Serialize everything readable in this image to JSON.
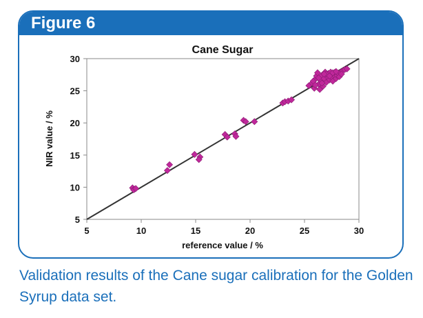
{
  "figure": {
    "label": "Figure 6",
    "caption": "Validation results of the Cane sugar calibration for the Golden Syrup data set."
  },
  "colors": {
    "accent": "#1a6fba",
    "marker": "#c0289b",
    "line": "#333333"
  },
  "chart_data": {
    "type": "scatter",
    "title": "Cane Sugar",
    "xlabel": "reference value / %",
    "ylabel": "NIR value / %",
    "xlim": [
      5,
      30
    ],
    "ylim": [
      5,
      30
    ],
    "xticks": [
      5,
      10,
      15,
      20,
      25,
      30
    ],
    "yticks": [
      5,
      10,
      15,
      20,
      25,
      30
    ],
    "grid": false,
    "reference_line": {
      "label": "y = x",
      "from": [
        5,
        5
      ],
      "to": [
        30,
        30
      ]
    },
    "series": [
      {
        "name": "Golden Syrup validation",
        "points": [
          [
            9.2,
            9.9
          ],
          [
            9.4,
            9.7
          ],
          [
            9.3,
            9.6
          ],
          [
            9.5,
            9.8
          ],
          [
            12.4,
            12.6
          ],
          [
            12.6,
            13.5
          ],
          [
            14.9,
            15.1
          ],
          [
            15.4,
            14.7
          ],
          [
            15.3,
            14.3
          ],
          [
            17.7,
            18.2
          ],
          [
            17.9,
            17.8
          ],
          [
            18.6,
            18.3
          ],
          [
            18.7,
            17.9
          ],
          [
            19.4,
            20.4
          ],
          [
            19.6,
            20.2
          ],
          [
            20.4,
            20.2
          ],
          [
            23.0,
            23.1
          ],
          [
            23.2,
            23.3
          ],
          [
            23.5,
            23.4
          ],
          [
            23.8,
            23.6
          ],
          [
            25.4,
            25.8
          ],
          [
            25.7,
            26.2
          ],
          [
            25.9,
            25.4
          ],
          [
            26.0,
            26.8
          ],
          [
            26.1,
            27.3
          ],
          [
            26.2,
            27.8
          ],
          [
            26.3,
            26.0
          ],
          [
            26.4,
            25.2
          ],
          [
            26.5,
            26.6
          ],
          [
            26.6,
            27.4
          ],
          [
            26.7,
            25.7
          ],
          [
            26.8,
            26.9
          ],
          [
            26.9,
            27.9
          ],
          [
            27.0,
            26.3
          ],
          [
            27.1,
            27.2
          ],
          [
            27.2,
            27.7
          ],
          [
            27.3,
            26.7
          ],
          [
            27.4,
            27.9
          ],
          [
            27.5,
            27.1
          ],
          [
            27.6,
            26.5
          ],
          [
            27.7,
            27.5
          ],
          [
            27.8,
            27.9
          ],
          [
            27.9,
            26.9
          ],
          [
            28.0,
            27.4
          ],
          [
            28.1,
            27.7
          ],
          [
            28.2,
            27.2
          ],
          [
            28.3,
            27.9
          ],
          [
            28.5,
            28.1
          ],
          [
            28.7,
            28.3
          ],
          [
            28.9,
            28.4
          ],
          [
            26.3,
            27.0
          ],
          [
            26.6,
            26.2
          ],
          [
            27.0,
            27.6
          ],
          [
            27.3,
            27.3
          ],
          [
            27.6,
            27.8
          ],
          [
            25.8,
            26.5
          ],
          [
            26.0,
            25.9
          ],
          [
            27.9,
            28.0
          ],
          [
            28.4,
            27.6
          ],
          [
            26.8,
            27.6
          ]
        ]
      }
    ]
  }
}
